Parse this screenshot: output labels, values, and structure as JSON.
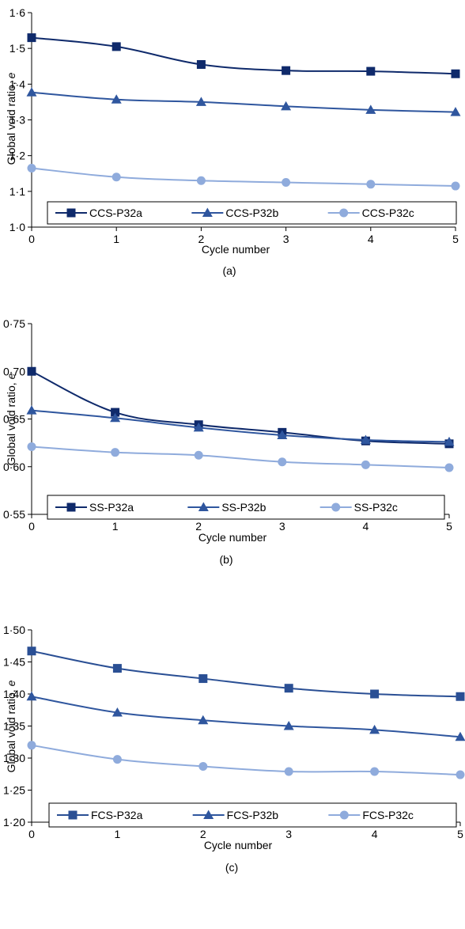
{
  "chart_data": [
    {
      "type": "line",
      "panel_label": "(a)",
      "xlabel": "Cycle number",
      "ylabel": "Global void ratio, ",
      "ylabel_symbol": "e",
      "x": [
        0,
        1,
        2,
        3,
        4,
        5
      ],
      "xticks": [
        "0",
        "1",
        "2",
        "3",
        "4",
        "5"
      ],
      "ylim": [
        1.0,
        1.6
      ],
      "yticks": [
        "1·0",
        "1·1",
        "1·2",
        "1·3",
        "1·4",
        "1·5",
        "1·6"
      ],
      "legend_placement": "bottom",
      "series": [
        {
          "name": "CCS-P32a",
          "marker": "square",
          "color": "#0f2a6b",
          "values": [
            1.53,
            1.505,
            1.455,
            1.438,
            1.436,
            1.429
          ]
        },
        {
          "name": "CCS-P32b",
          "marker": "triangle",
          "color": "#2f569e",
          "values": [
            1.377,
            1.357,
            1.35,
            1.338,
            1.328,
            1.322
          ]
        },
        {
          "name": "CCS-P32c",
          "marker": "circle",
          "color": "#8fabdc",
          "values": [
            1.165,
            1.14,
            1.13,
            1.125,
            1.12,
            1.115
          ]
        }
      ]
    },
    {
      "type": "line",
      "panel_label": "(b)",
      "xlabel": "Cycle number",
      "ylabel": "Global void ratio, ",
      "ylabel_symbol": "e",
      "x": [
        0,
        1,
        2,
        3,
        4,
        5
      ],
      "xticks": [
        "0",
        "1",
        "2",
        "3",
        "4",
        "5"
      ],
      "ylim": [
        0.55,
        0.75
      ],
      "yticks": [
        "0·55",
        "0·60",
        "0·65",
        "0·70",
        "0·75"
      ],
      "legend_placement": "bottom",
      "series": [
        {
          "name": "SS-P32a",
          "marker": "square",
          "color": "#0f2a6b",
          "values": [
            0.7,
            0.657,
            0.644,
            0.636,
            0.627,
            0.624
          ]
        },
        {
          "name": "SS-P32b",
          "marker": "triangle",
          "color": "#2f569e",
          "values": [
            0.659,
            0.651,
            0.641,
            0.633,
            0.628,
            0.626
          ]
        },
        {
          "name": "SS-P32c",
          "marker": "circle",
          "color": "#8fabdc",
          "values": [
            0.621,
            0.615,
            0.612,
            0.605,
            0.602,
            0.599
          ]
        }
      ]
    },
    {
      "type": "line",
      "panel_label": "(c)",
      "xlabel": "Cycle number",
      "ylabel": "Global void ratio, ",
      "ylabel_symbol": "e",
      "x": [
        0,
        1,
        2,
        3,
        4,
        5
      ],
      "xticks": [
        "0",
        "1",
        "2",
        "3",
        "4",
        "5"
      ],
      "ylim": [
        1.2,
        1.5
      ],
      "yticks": [
        "1·20",
        "1·25",
        "1·30",
        "1·35",
        "1·40",
        "1·45",
        "1·50"
      ],
      "legend_placement": "bottom",
      "series": [
        {
          "name": "FCS-P32a",
          "marker": "square",
          "color": "#2a4f94",
          "values": [
            1.467,
            1.44,
            1.424,
            1.409,
            1.4,
            1.396
          ]
        },
        {
          "name": "FCS-P32b",
          "marker": "triangle",
          "color": "#2f569e",
          "values": [
            1.396,
            1.371,
            1.359,
            1.35,
            1.344,
            1.333
          ]
        },
        {
          "name": "FCS-P32c",
          "marker": "circle",
          "color": "#8fabdc",
          "values": [
            1.32,
            1.298,
            1.287,
            1.279,
            1.279,
            1.274
          ]
        }
      ]
    }
  ]
}
